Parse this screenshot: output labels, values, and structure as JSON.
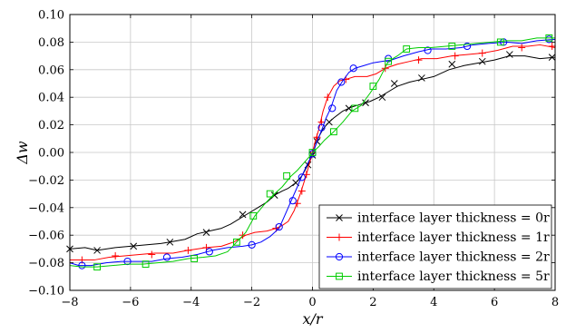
{
  "chart_data": {
    "type": "line",
    "xlabel": "x/r",
    "ylabel": "Δw",
    "xlim": [
      -8,
      8
    ],
    "ylim": [
      -0.1,
      0.1
    ],
    "xticks": [
      -8,
      -6,
      -4,
      -2,
      0,
      2,
      4,
      6,
      8
    ],
    "xtick_labels": [
      "−8",
      "−6",
      "−4",
      "−2",
      "0",
      "2",
      "4",
      "6",
      "8"
    ],
    "yticks": [
      -0.1,
      -0.08,
      -0.06,
      -0.04,
      -0.02,
      0,
      0.02,
      0.04,
      0.06,
      0.08,
      0.1
    ],
    "ytick_labels": [
      "−0.10",
      "−0.08",
      "−0.06",
      "−0.04",
      "−0.02",
      "0.00",
      "0.02",
      "0.04",
      "0.06",
      "0.08",
      "0.10"
    ],
    "grid": true,
    "legend_position": "bottom-right",
    "series": [
      {
        "name": "interface layer thickness = 0r",
        "color": "#000000",
        "marker": "x",
        "points": [
          [
            -8,
            -0.07
          ],
          [
            -7.5,
            -0.069
          ],
          [
            -7.1,
            -0.071
          ],
          [
            -6.5,
            -0.069
          ],
          [
            -6.0,
            -0.068
          ],
          [
            -5.5,
            -0.067
          ],
          [
            -5.0,
            -0.066
          ],
          [
            -4.7,
            -0.065
          ],
          [
            -4.2,
            -0.063
          ],
          [
            -3.8,
            -0.059
          ],
          [
            -3.4,
            -0.057
          ],
          [
            -3.0,
            -0.055
          ],
          [
            -2.7,
            -0.052
          ],
          [
            -2.4,
            -0.048
          ],
          [
            -2.1,
            -0.044
          ],
          [
            -1.8,
            -0.04
          ],
          [
            -1.5,
            -0.036
          ],
          [
            -1.25,
            -0.031
          ],
          [
            -1.0,
            -0.028
          ],
          [
            -0.8,
            -0.026
          ],
          [
            -0.55,
            -0.022
          ],
          [
            -0.35,
            -0.017
          ],
          [
            -0.2,
            -0.011
          ],
          [
            -0.1,
            -0.007
          ],
          [
            0.0,
            -0.002
          ],
          [
            0.1,
            0.005
          ],
          [
            0.2,
            0.011
          ],
          [
            0.35,
            0.017
          ],
          [
            0.5,
            0.021
          ],
          [
            0.7,
            0.025
          ],
          [
            1.0,
            0.03
          ],
          [
            1.3,
            0.033
          ],
          [
            1.6,
            0.035
          ],
          [
            1.9,
            0.037
          ],
          [
            2.2,
            0.04
          ],
          [
            2.5,
            0.044
          ],
          [
            2.8,
            0.048
          ],
          [
            3.2,
            0.051
          ],
          [
            3.6,
            0.053
          ],
          [
            4.0,
            0.055
          ],
          [
            4.5,
            0.06
          ],
          [
            5.0,
            0.063
          ],
          [
            5.5,
            0.065
          ],
          [
            6.0,
            0.067
          ],
          [
            6.5,
            0.07
          ],
          [
            7.0,
            0.07
          ],
          [
            7.5,
            0.068
          ],
          [
            8.0,
            0.069
          ]
        ],
        "markers": [
          [
            -8,
            -0.07
          ],
          [
            -7.1,
            -0.071
          ],
          [
            -5.9,
            -0.068
          ],
          [
            -4.7,
            -0.065
          ],
          [
            -3.5,
            -0.058
          ],
          [
            -2.3,
            -0.045
          ],
          [
            -1.25,
            -0.031
          ],
          [
            -0.55,
            -0.022
          ],
          [
            -0.15,
            -0.009
          ],
          [
            0.0,
            -0.002
          ],
          [
            0.15,
            0.008
          ],
          [
            0.55,
            0.022
          ],
          [
            1.2,
            0.032
          ],
          [
            1.75,
            0.036
          ],
          [
            2.3,
            0.04
          ],
          [
            2.7,
            0.05
          ],
          [
            3.6,
            0.054
          ],
          [
            4.6,
            0.064
          ],
          [
            5.6,
            0.066
          ],
          [
            6.5,
            0.071
          ],
          [
            7.9,
            0.069
          ]
        ]
      },
      {
        "name": "interface layer thickness = 1r",
        "color": "#ff0000",
        "marker": "+",
        "points": [
          [
            -8,
            -0.078
          ],
          [
            -7.6,
            -0.078
          ],
          [
            -7.2,
            -0.078
          ],
          [
            -6.7,
            -0.076
          ],
          [
            -6.2,
            -0.075
          ],
          [
            -5.7,
            -0.074
          ],
          [
            -5.2,
            -0.073
          ],
          [
            -4.6,
            -0.073
          ],
          [
            -4.1,
            -0.071
          ],
          [
            -3.5,
            -0.069
          ],
          [
            -3.0,
            -0.068
          ],
          [
            -2.6,
            -0.065
          ],
          [
            -2.2,
            -0.06
          ],
          [
            -1.9,
            -0.058
          ],
          [
            -1.5,
            -0.057
          ],
          [
            -1.2,
            -0.055
          ],
          [
            -1.0,
            -0.053
          ],
          [
            -0.8,
            -0.05
          ],
          [
            -0.6,
            -0.042
          ],
          [
            -0.4,
            -0.03
          ],
          [
            -0.2,
            -0.016
          ],
          [
            -0.1,
            -0.008
          ],
          [
            0.0,
            0.0
          ],
          [
            0.1,
            0.009
          ],
          [
            0.2,
            0.016
          ],
          [
            0.35,
            0.03
          ],
          [
            0.5,
            0.04
          ],
          [
            0.7,
            0.048
          ],
          [
            0.9,
            0.052
          ],
          [
            1.1,
            0.053
          ],
          [
            1.4,
            0.055
          ],
          [
            1.8,
            0.055
          ],
          [
            2.1,
            0.057
          ],
          [
            2.4,
            0.061
          ],
          [
            2.8,
            0.064
          ],
          [
            3.2,
            0.066
          ],
          [
            3.6,
            0.068
          ],
          [
            4.1,
            0.068
          ],
          [
            4.6,
            0.07
          ],
          [
            5.1,
            0.071
          ],
          [
            5.6,
            0.072
          ],
          [
            6.1,
            0.074
          ],
          [
            6.6,
            0.077
          ],
          [
            7.1,
            0.077
          ],
          [
            7.5,
            0.078
          ],
          [
            8.0,
            0.076
          ]
        ],
        "markers": [
          [
            -7.6,
            -0.078
          ],
          [
            -6.5,
            -0.075
          ],
          [
            -5.3,
            -0.074
          ],
          [
            -4.1,
            -0.071
          ],
          [
            -3.5,
            -0.069
          ],
          [
            -2.3,
            -0.06
          ],
          [
            -1.2,
            -0.055
          ],
          [
            -0.5,
            -0.037
          ],
          [
            -0.35,
            -0.028
          ],
          [
            -0.2,
            -0.016
          ],
          [
            0.0,
            0.0
          ],
          [
            0.15,
            0.011
          ],
          [
            0.3,
            0.022
          ],
          [
            0.5,
            0.04
          ],
          [
            1.1,
            0.053
          ],
          [
            2.4,
            0.061
          ],
          [
            3.5,
            0.067
          ],
          [
            4.7,
            0.07
          ],
          [
            5.6,
            0.072
          ],
          [
            6.9,
            0.076
          ],
          [
            7.9,
            0.077
          ]
        ]
      },
      {
        "name": "interface layer thickness = 2r",
        "color": "#0000ff",
        "marker": "o",
        "points": [
          [
            -8,
            -0.08
          ],
          [
            -7.7,
            -0.082
          ],
          [
            -7.3,
            -0.082
          ],
          [
            -6.8,
            -0.08
          ],
          [
            -6.3,
            -0.079
          ],
          [
            -5.8,
            -0.079
          ],
          [
            -5.3,
            -0.079
          ],
          [
            -4.8,
            -0.077
          ],
          [
            -4.3,
            -0.076
          ],
          [
            -3.8,
            -0.074
          ],
          [
            -3.3,
            -0.071
          ],
          [
            -2.8,
            -0.069
          ],
          [
            -2.3,
            -0.068
          ],
          [
            -2.0,
            -0.067
          ],
          [
            -1.7,
            -0.065
          ],
          [
            -1.4,
            -0.061
          ],
          [
            -1.1,
            -0.055
          ],
          [
            -0.9,
            -0.045
          ],
          [
            -0.7,
            -0.035
          ],
          [
            -0.5,
            -0.025
          ],
          [
            -0.35,
            -0.017
          ],
          [
            -0.2,
            -0.01
          ],
          [
            0.0,
            -0.001
          ],
          [
            0.15,
            0.008
          ],
          [
            0.3,
            0.016
          ],
          [
            0.45,
            0.025
          ],
          [
            0.6,
            0.032
          ],
          [
            0.8,
            0.045
          ],
          [
            1.0,
            0.052
          ],
          [
            1.2,
            0.058
          ],
          [
            1.4,
            0.061
          ],
          [
            1.7,
            0.063
          ],
          [
            2.0,
            0.065
          ],
          [
            2.3,
            0.066
          ],
          [
            2.6,
            0.067
          ],
          [
            3.0,
            0.07
          ],
          [
            3.5,
            0.073
          ],
          [
            3.9,
            0.075
          ],
          [
            4.4,
            0.075
          ],
          [
            4.9,
            0.076
          ],
          [
            5.3,
            0.078
          ],
          [
            5.8,
            0.079
          ],
          [
            6.4,
            0.08
          ],
          [
            6.9,
            0.079
          ],
          [
            7.4,
            0.081
          ],
          [
            8.0,
            0.082
          ]
        ],
        "markers": [
          [
            -7.6,
            -0.082
          ],
          [
            -6.1,
            -0.079
          ],
          [
            -4.8,
            -0.076
          ],
          [
            -3.4,
            -0.072
          ],
          [
            -2.0,
            -0.067
          ],
          [
            -1.1,
            -0.054
          ],
          [
            -0.65,
            -0.035
          ],
          [
            -0.35,
            -0.018
          ],
          [
            0.0,
            -0.001
          ],
          [
            0.3,
            0.018
          ],
          [
            0.65,
            0.032
          ],
          [
            0.95,
            0.051
          ],
          [
            1.35,
            0.061
          ],
          [
            2.5,
            0.068
          ],
          [
            3.8,
            0.074
          ],
          [
            5.1,
            0.077
          ],
          [
            6.3,
            0.08
          ],
          [
            7.8,
            0.082
          ]
        ]
      },
      {
        "name": "interface layer thickness = 5r",
        "color": "#00cc00",
        "marker": "s",
        "points": [
          [
            -8,
            -0.082
          ],
          [
            -7.6,
            -0.083
          ],
          [
            -7.1,
            -0.083
          ],
          [
            -6.6,
            -0.082
          ],
          [
            -6.1,
            -0.081
          ],
          [
            -5.6,
            -0.081
          ],
          [
            -5.1,
            -0.08
          ],
          [
            -4.6,
            -0.079
          ],
          [
            -4.1,
            -0.077
          ],
          [
            -3.6,
            -0.076
          ],
          [
            -3.2,
            -0.075
          ],
          [
            -2.8,
            -0.072
          ],
          [
            -2.5,
            -0.065
          ],
          [
            -2.2,
            -0.058
          ],
          [
            -1.9,
            -0.046
          ],
          [
            -1.6,
            -0.038
          ],
          [
            -1.3,
            -0.031
          ],
          [
            -1.0,
            -0.025
          ],
          [
            -0.7,
            -0.017
          ],
          [
            -0.5,
            -0.013
          ],
          [
            -0.3,
            -0.008
          ],
          [
            -0.1,
            -0.003
          ],
          [
            0.0,
            0.0
          ],
          [
            0.2,
            0.004
          ],
          [
            0.4,
            0.009
          ],
          [
            0.7,
            0.015
          ],
          [
            1.0,
            0.022
          ],
          [
            1.3,
            0.03
          ],
          [
            1.6,
            0.034
          ],
          [
            1.9,
            0.043
          ],
          [
            2.2,
            0.053
          ],
          [
            2.5,
            0.066
          ],
          [
            2.8,
            0.07
          ],
          [
            3.1,
            0.075
          ],
          [
            3.5,
            0.076
          ],
          [
            3.9,
            0.076
          ],
          [
            4.4,
            0.077
          ],
          [
            4.9,
            0.078
          ],
          [
            5.4,
            0.079
          ],
          [
            5.9,
            0.08
          ],
          [
            6.4,
            0.081
          ],
          [
            6.9,
            0.081
          ],
          [
            7.4,
            0.083
          ],
          [
            8.0,
            0.083
          ]
        ],
        "markers": [
          [
            -7.1,
            -0.083
          ],
          [
            -5.5,
            -0.081
          ],
          [
            -3.9,
            -0.077
          ],
          [
            -2.5,
            -0.065
          ],
          [
            -1.95,
            -0.046
          ],
          [
            -1.4,
            -0.03
          ],
          [
            -0.85,
            -0.017
          ],
          [
            0.0,
            0.0
          ],
          [
            0.7,
            0.015
          ],
          [
            1.4,
            0.032
          ],
          [
            2.0,
            0.048
          ],
          [
            2.5,
            0.066
          ],
          [
            3.1,
            0.075
          ],
          [
            4.6,
            0.077
          ],
          [
            6.2,
            0.08
          ],
          [
            7.8,
            0.083
          ]
        ]
      }
    ]
  }
}
